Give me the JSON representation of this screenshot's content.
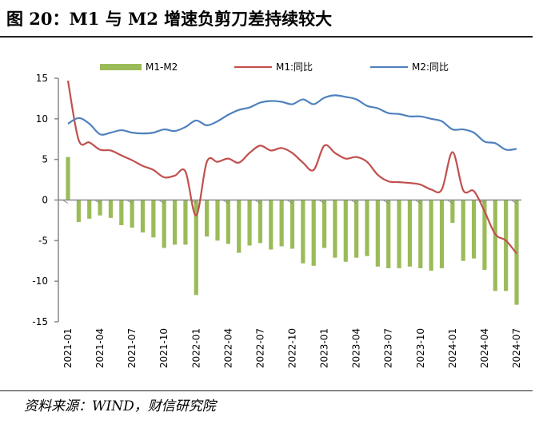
{
  "title": "图 20：M1 与 M2 增速负剪刀差持续较大",
  "source": "资料来源：WIND，财信研究院",
  "chart_data": {
    "type": "bar+line",
    "x": [
      "2021-01",
      "2021-02",
      "2021-03",
      "2021-04",
      "2021-05",
      "2021-06",
      "2021-07",
      "2021-08",
      "2021-09",
      "2021-10",
      "2021-11",
      "2021-12",
      "2022-01",
      "2022-02",
      "2022-03",
      "2022-04",
      "2022-05",
      "2022-06",
      "2022-07",
      "2022-08",
      "2022-09",
      "2022-10",
      "2022-11",
      "2022-12",
      "2023-01",
      "2023-02",
      "2023-03",
      "2023-04",
      "2023-05",
      "2023-06",
      "2023-07",
      "2023-08",
      "2023-09",
      "2023-10",
      "2023-11",
      "2023-12",
      "2024-01",
      "2024-02",
      "2024-03",
      "2024-04",
      "2024-05",
      "2024-06",
      "2024-07"
    ],
    "xticks": [
      "2021-01",
      "2021-04",
      "2021-07",
      "2021-10",
      "2022-01",
      "2022-04",
      "2022-07",
      "2022-10",
      "2023-01",
      "2023-04",
      "2023-07",
      "2023-10",
      "2024-01",
      "2024-04",
      "2024-07"
    ],
    "ylim": [
      -15,
      15
    ],
    "yticks": [
      15,
      10,
      5,
      0,
      -5,
      -10,
      -15
    ],
    "legend": "top",
    "series": [
      {
        "name": "M1-M2",
        "kind": "bar",
        "color": "#9bbb59",
        "values": [
          5.3,
          -2.7,
          -2.3,
          -1.9,
          -2.2,
          -3.1,
          -3.4,
          -4.0,
          -4.6,
          -5.9,
          -5.5,
          -5.5,
          -11.7,
          -4.5,
          -5.0,
          -5.4,
          -6.5,
          -5.6,
          -5.3,
          -6.1,
          -5.7,
          -6.0,
          -7.8,
          -8.1,
          -5.9,
          -7.1,
          -7.6,
          -7.1,
          -6.9,
          -8.2,
          -8.4,
          -8.4,
          -8.2,
          -8.4,
          -8.7,
          -8.4,
          -2.8,
          -7.5,
          -7.2,
          -8.6,
          -11.2,
          -11.2,
          -12.9
        ]
      },
      {
        "name": "M1:同比",
        "kind": "line",
        "color": "#c0504d",
        "values": [
          14.7,
          7.4,
          7.1,
          6.2,
          6.1,
          5.5,
          4.9,
          4.2,
          3.7,
          2.8,
          3.0,
          3.5,
          -1.9,
          4.7,
          4.7,
          5.1,
          4.6,
          5.8,
          6.7,
          6.1,
          6.4,
          5.8,
          4.6,
          3.7,
          6.7,
          5.8,
          5.1,
          5.3,
          4.7,
          3.1,
          2.3,
          2.2,
          2.1,
          1.9,
          1.3,
          1.3,
          5.9,
          1.2,
          1.1,
          -1.4,
          -4.2,
          -5.0,
          -6.6
        ]
      },
      {
        "name": "M2:同比",
        "kind": "line",
        "color": "#4f81bd",
        "values": [
          9.4,
          10.1,
          9.4,
          8.1,
          8.3,
          8.6,
          8.3,
          8.2,
          8.3,
          8.7,
          8.5,
          9.0,
          9.8,
          9.2,
          9.7,
          10.5,
          11.1,
          11.4,
          12.0,
          12.2,
          12.1,
          11.8,
          12.4,
          11.8,
          12.6,
          12.9,
          12.7,
          12.4,
          11.6,
          11.3,
          10.7,
          10.6,
          10.3,
          10.3,
          10.0,
          9.7,
          8.7,
          8.7,
          8.3,
          7.2,
          7.0,
          6.2,
          6.3
        ]
      }
    ]
  }
}
